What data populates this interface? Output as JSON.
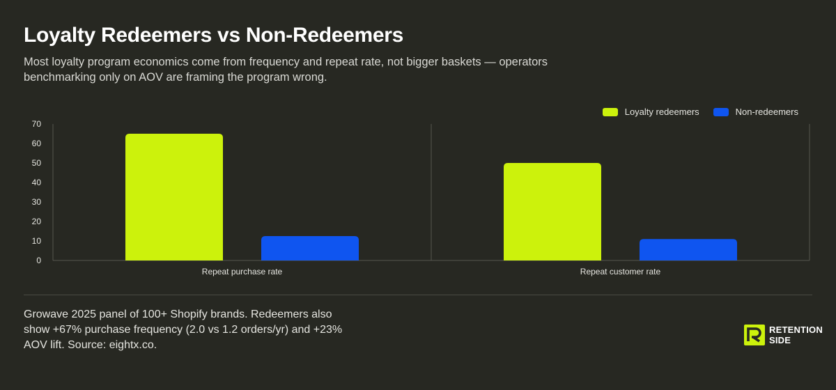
{
  "header": {
    "title": "Loyalty Redeemers vs Non-Redeemers",
    "subtitle": "Most loyalty program economics come from frequency and repeat rate, not bigger baskets — operators benchmarking only on AOV are framing the program wrong."
  },
  "chart_data": {
    "type": "bar",
    "categories": [
      "Repeat purchase rate",
      "Repeat customer rate"
    ],
    "series": [
      {
        "name": "Loyalty redeemers",
        "values": [
          65,
          50
        ],
        "color": "#ccf20c"
      },
      {
        "name": "Non-redeemers",
        "values": [
          12.5,
          11
        ],
        "color": "#0f55f0"
      }
    ],
    "yticks": [
      0,
      10,
      20,
      30,
      40,
      50,
      60,
      70
    ],
    "ylim": [
      0,
      70
    ],
    "legend_position": "top-right",
    "grid": false
  },
  "footer": {
    "note": "Growave 2025 panel of 100+ Shopify brands. Redeemers also show +67% purchase frequency (2.0 vs 1.2 orders/yr) and +23% AOV lift. Source: eightx.co.",
    "brand_line1": "RETENTION",
    "brand_line2": "SIDE"
  },
  "colors": {
    "background": "#272822",
    "axis": "#55564f",
    "accent": "#ccf20c"
  }
}
